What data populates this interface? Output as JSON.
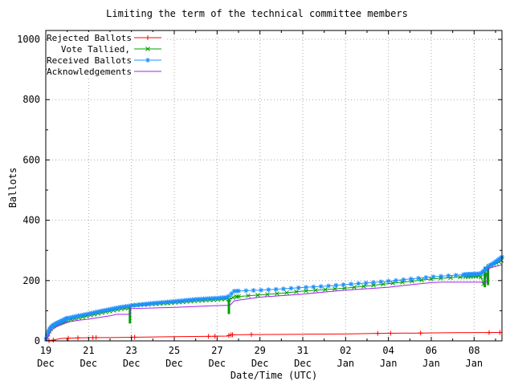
{
  "title": "Limiting the term of the technical committee members",
  "colors": {
    "grid": "#a8a8a8",
    "axis": "#000000",
    "background": "#ffffff"
  },
  "chart_data": {
    "type": "line",
    "title": "Limiting the term of the technical committee members",
    "xlabel": "Date/Time (UTC)",
    "ylabel": "Ballots",
    "ylim": [
      0,
      1000
    ],
    "xlim_days": [
      0,
      21.3
    ],
    "x_unit": "days since 19 Dec 00:00 UTC",
    "grid": true,
    "legend_position": "top-left-inside",
    "y_ticks": [
      0,
      200,
      400,
      600,
      800,
      1000
    ],
    "y_minor_ticks": [
      100,
      300,
      500,
      700,
      900
    ],
    "x_ticks": [
      {
        "day": 0,
        "line1": "19",
        "line2": "Dec"
      },
      {
        "day": 2,
        "line1": "21",
        "line2": "Dec"
      },
      {
        "day": 4,
        "line1": "23",
        "line2": "Dec"
      },
      {
        "day": 6,
        "line1": "25",
        "line2": "Dec"
      },
      {
        "day": 8,
        "line1": "27",
        "line2": "Dec"
      },
      {
        "day": 10,
        "line1": "29",
        "line2": "Dec"
      },
      {
        "day": 12,
        "line1": "31",
        "line2": "Dec"
      },
      {
        "day": 14,
        "line1": "02",
        "line2": "Jan"
      },
      {
        "day": 16,
        "line1": "04",
        "line2": "Jan"
      },
      {
        "day": 18,
        "line1": "06",
        "line2": "Jan"
      },
      {
        "day": 20,
        "line1": "08",
        "line2": "Jan"
      }
    ],
    "series": [
      {
        "name": "Rejected Ballots",
        "color": "#ff0000",
        "marker": "plus",
        "points": [
          [
            0,
            0
          ],
          [
            0.1,
            1
          ],
          [
            0.3,
            2
          ],
          [
            0.5,
            5
          ],
          [
            0.7,
            8
          ],
          [
            1,
            9
          ],
          [
            1.5,
            10
          ],
          [
            2.2,
            11
          ],
          [
            3,
            11
          ],
          [
            4,
            12
          ],
          [
            5,
            13
          ],
          [
            6,
            14
          ],
          [
            7.5,
            15
          ],
          [
            8.5,
            16
          ],
          [
            8.6,
            20
          ],
          [
            9.6,
            21
          ],
          [
            12,
            22
          ],
          [
            14,
            23
          ],
          [
            15.5,
            25
          ],
          [
            17.5,
            26
          ],
          [
            19,
            27
          ],
          [
            21.3,
            28
          ]
        ],
        "marker_x": [
          0.15,
          0.35,
          1.05,
          1.5,
          2.2,
          2.35,
          4.0,
          4.15,
          7.6,
          7.9,
          8.55,
          8.65,
          8.72,
          9.6,
          15.5,
          16.1,
          17.5,
          20.7,
          21.2
        ]
      },
      {
        "name": "Vote Tallied,",
        "color": "#00a000",
        "marker": "cross",
        "points": [
          [
            0,
            0
          ],
          [
            0.05,
            10
          ],
          [
            0.1,
            22
          ],
          [
            0.2,
            36
          ],
          [
            0.3,
            45
          ],
          [
            0.5,
            54
          ],
          [
            0.8,
            62
          ],
          [
            1,
            68
          ],
          [
            1.5,
            76
          ],
          [
            2,
            84
          ],
          [
            2.5,
            92
          ],
          [
            3,
            99
          ],
          [
            3.5,
            106
          ],
          [
            3.9,
            110
          ],
          [
            3.93,
            58
          ],
          [
            3.93,
            118
          ],
          [
            4.3,
            119
          ],
          [
            5,
            122
          ],
          [
            6,
            127
          ],
          [
            7,
            133
          ],
          [
            8,
            137
          ],
          [
            8.5,
            140
          ],
          [
            8.55,
            89
          ],
          [
            8.55,
            137
          ],
          [
            8.8,
            146
          ],
          [
            9.5,
            150
          ],
          [
            10,
            152
          ],
          [
            11,
            158
          ],
          [
            12,
            165
          ],
          [
            13,
            170
          ],
          [
            14,
            175
          ],
          [
            15,
            182
          ],
          [
            16,
            190
          ],
          [
            17,
            197
          ],
          [
            18,
            205
          ],
          [
            19,
            210
          ],
          [
            19.8,
            213
          ],
          [
            20.3,
            215
          ],
          [
            20.5,
            178
          ],
          [
            20.5,
            246
          ],
          [
            20.65,
            185
          ],
          [
            20.65,
            248
          ],
          [
            20.8,
            250
          ],
          [
            21,
            256
          ],
          [
            21.2,
            263
          ],
          [
            21.3,
            268
          ]
        ],
        "bars": [
          {
            "x": 3.93,
            "y0": 58,
            "y1": 118
          },
          {
            "x": 8.55,
            "y0": 89,
            "y1": 137
          },
          {
            "x": 20.5,
            "y0": 178,
            "y1": 246
          },
          {
            "x": 20.65,
            "y0": 185,
            "y1": 248
          }
        ],
        "marker_zones": [
          {
            "from": 0.03,
            "to": 1,
            "step": 0.07
          },
          {
            "from": 1,
            "to": 9,
            "step": 0.18
          },
          {
            "from": 9,
            "to": 19.5,
            "step": 0.45
          },
          {
            "from": 19.6,
            "to": 21.3,
            "step": 0.12
          }
        ]
      },
      {
        "name": "Received Ballots",
        "color": "#1e90ff",
        "marker": "asterisk",
        "points": [
          [
            0,
            0
          ],
          [
            0.05,
            14
          ],
          [
            0.1,
            28
          ],
          [
            0.2,
            42
          ],
          [
            0.3,
            50
          ],
          [
            0.5,
            58
          ],
          [
            0.8,
            68
          ],
          [
            1,
            75
          ],
          [
            1.5,
            83
          ],
          [
            2,
            90
          ],
          [
            2.5,
            98
          ],
          [
            3,
            105
          ],
          [
            3.5,
            112
          ],
          [
            4,
            117
          ],
          [
            4.5,
            121
          ],
          [
            5,
            125
          ],
          [
            6,
            131
          ],
          [
            7,
            138
          ],
          [
            8,
            142
          ],
          [
            8.5,
            145
          ],
          [
            8.6,
            152
          ],
          [
            8.8,
            165
          ],
          [
            9.5,
            167
          ],
          [
            10,
            168
          ],
          [
            11,
            172
          ],
          [
            12,
            177
          ],
          [
            13,
            181
          ],
          [
            14,
            187
          ],
          [
            15,
            192
          ],
          [
            16,
            198
          ],
          [
            17,
            205
          ],
          [
            18,
            212
          ],
          [
            19,
            217
          ],
          [
            19.8,
            221
          ],
          [
            20.3,
            222
          ],
          [
            20.45,
            232
          ],
          [
            20.7,
            248
          ],
          [
            21,
            262
          ],
          [
            21.15,
            270
          ],
          [
            21.3,
            278
          ]
        ],
        "marker_zones": [
          {
            "from": 0.02,
            "to": 1,
            "step": 0.05
          },
          {
            "from": 1,
            "to": 9,
            "step": 0.13
          },
          {
            "from": 9,
            "to": 19.5,
            "step": 0.35
          },
          {
            "from": 19.5,
            "to": 21.3,
            "step": 0.06
          }
        ]
      },
      {
        "name": "Acknowledgements",
        "color": "#a020f0",
        "marker": "none",
        "points": [
          [
            0,
            0
          ],
          [
            0.1,
            15
          ],
          [
            0.2,
            28
          ],
          [
            0.3,
            38
          ],
          [
            0.5,
            48
          ],
          [
            0.8,
            57
          ],
          [
            1,
            62
          ],
          [
            1.5,
            68
          ],
          [
            2,
            72
          ],
          [
            2.5,
            78
          ],
          [
            3,
            83
          ],
          [
            3.3,
            88
          ],
          [
            3.93,
            88
          ],
          [
            3.95,
            107
          ],
          [
            5,
            109
          ],
          [
            6,
            111
          ],
          [
            7,
            114
          ],
          [
            8,
            117
          ],
          [
            8.6,
            118
          ],
          [
            8.8,
            133
          ],
          [
            9.5,
            140
          ],
          [
            10,
            145
          ],
          [
            11,
            150
          ],
          [
            12,
            155
          ],
          [
            13,
            162
          ],
          [
            14,
            168
          ],
          [
            15,
            173
          ],
          [
            16,
            178
          ],
          [
            17,
            186
          ],
          [
            18,
            193
          ],
          [
            18.5,
            195
          ],
          [
            20.6,
            195
          ],
          [
            20.65,
            240
          ],
          [
            21,
            247
          ],
          [
            21.3,
            252
          ]
        ]
      }
    ]
  }
}
